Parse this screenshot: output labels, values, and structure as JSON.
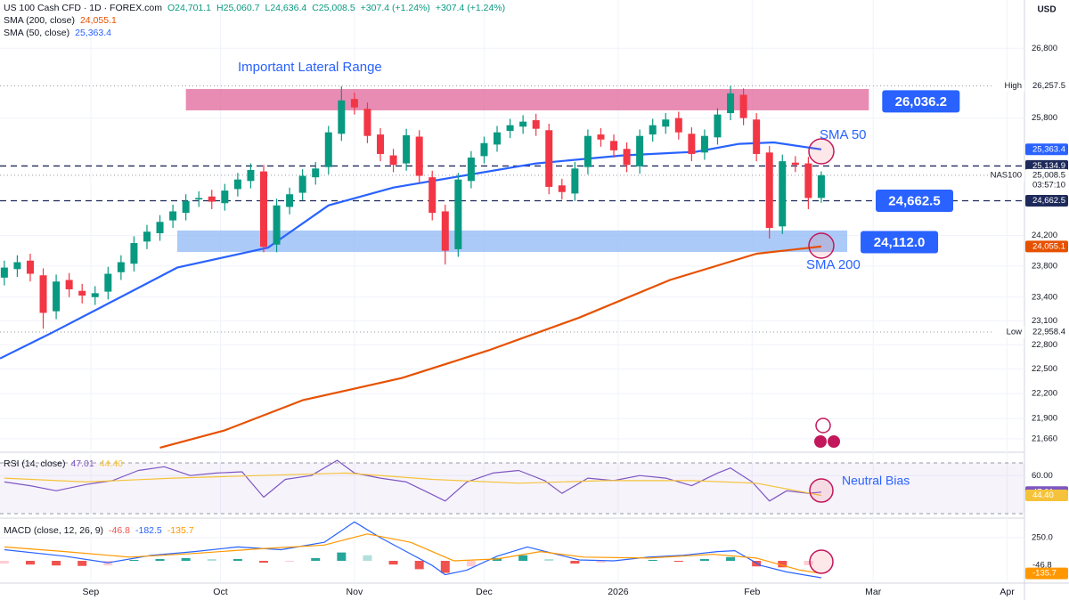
{
  "chart_data": [
    {
      "type": "candlestick",
      "title": "US 100 Cash CFD · 1D · FOREX.com",
      "quote": [
        "O24,701.1",
        "H25,060.7",
        "L24,636.4",
        "C25,008.5",
        "+307.4 (+1.24%)",
        "+307.4 (+1.24%)"
      ],
      "unit": "USD",
      "log": true,
      "grid": true,
      "xlim": [
        10,
        247
      ],
      "xticks": [
        {
          "value": 31,
          "label": "Sep"
        },
        {
          "value": 61,
          "label": "Oct"
        },
        {
          "value": 92,
          "label": "Nov"
        },
        {
          "value": 122,
          "label": "Dec"
        },
        {
          "value": 153,
          "label": "2026"
        },
        {
          "value": 184,
          "label": "Feb"
        },
        {
          "value": 212,
          "label": "Mar"
        },
        {
          "value": 243,
          "label": "Apr"
        }
      ],
      "ylim": [
        21502,
        27516
      ],
      "yticks": [
        {
          "value": 26800,
          "label": "26,800"
        },
        {
          "value": 25800,
          "label": "25,800"
        },
        {
          "value": 24200,
          "label": "24,200"
        },
        {
          "value": 23800,
          "label": "23,800"
        },
        {
          "value": 23400,
          "label": "23,400"
        },
        {
          "value": 23100,
          "label": "23,100"
        },
        {
          "value": 22800,
          "label": "22,800"
        },
        {
          "value": 22500,
          "label": "22,500"
        },
        {
          "value": 22200,
          "label": "22,200"
        },
        {
          "value": 21900,
          "label": "21,900"
        },
        {
          "value": 21660,
          "label": "21,660"
        }
      ],
      "up_color": "#089981",
      "down_color": "#f23645",
      "candles": {
        "x": [
          11,
          14,
          17,
          20,
          23,
          26,
          29,
          32,
          35,
          38,
          41,
          44,
          47,
          50,
          53,
          56,
          59,
          62,
          65,
          68,
          71,
          74,
          77,
          80,
          83,
          86,
          89,
          92,
          95,
          98,
          101,
          104,
          107,
          110,
          113,
          116,
          119,
          122,
          125,
          128,
          131,
          134,
          137,
          140,
          143,
          146,
          149,
          152,
          155,
          158,
          161,
          164,
          167,
          170,
          173,
          176,
          179,
          182,
          185,
          188,
          191,
          194,
          197,
          200
        ],
        "open": [
          23650,
          23760,
          23870,
          23680,
          23220,
          23620,
          23480,
          23400,
          23470,
          23720,
          23830,
          24120,
          24230,
          24400,
          24500,
          24680,
          24720,
          24630,
          24820,
          24930,
          25060,
          24080,
          24580,
          24770,
          24980,
          25120,
          25580,
          26070,
          25930,
          25570,
          25280,
          25170,
          25540,
          24980,
          24520,
          24020,
          24930,
          25270,
          25430,
          25620,
          25680,
          25770,
          25630,
          24870,
          24760,
          25120,
          25570,
          25480,
          25370,
          25130,
          25570,
          25680,
          25800,
          25580,
          25320,
          25530,
          25870,
          26130,
          25780,
          25320,
          24320,
          25180,
          25170,
          24701.1
        ],
        "high": [
          23870,
          23940,
          23960,
          23770,
          23690,
          23710,
          23570,
          23540,
          23790,
          23940,
          24190,
          24340,
          24470,
          24610,
          24750,
          24790,
          24810,
          24890,
          25040,
          25170,
          25150,
          24690,
          24840,
          25090,
          25190,
          25690,
          26250,
          26160,
          26020,
          25660,
          25370,
          25650,
          25630,
          25070,
          24610,
          25040,
          25340,
          25540,
          25690,
          25790,
          25840,
          25860,
          25720,
          24960,
          25190,
          25640,
          25660,
          25570,
          25460,
          25640,
          25790,
          25870,
          25890,
          25670,
          25640,
          25940,
          26257.5,
          26220,
          25870,
          25410,
          25290,
          25270,
          25260,
          25060.7
        ],
        "low": [
          23550,
          23660,
          23600,
          23000,
          23120,
          23400,
          23320,
          23300,
          23370,
          23620,
          23730,
          24020,
          24130,
          24300,
          24400,
          24580,
          24550,
          24530,
          24720,
          24830,
          23980,
          23980,
          24480,
          24670,
          24880,
          25020,
          25480,
          25850,
          25450,
          25200,
          25050,
          25070,
          24900,
          24400,
          23820,
          23920,
          24830,
          25170,
          25330,
          25520,
          25580,
          25550,
          24750,
          24680,
          24660,
          25020,
          25400,
          25250,
          25050,
          25030,
          25470,
          25580,
          25500,
          25200,
          25220,
          25430,
          25770,
          25700,
          25200,
          24160,
          24220,
          25050,
          24550,
          24636.4
        ],
        "close": [
          23780,
          23850,
          23700,
          23200,
          23600,
          23500,
          23420,
          23450,
          23700,
          23850,
          24100,
          24250,
          24380,
          24520,
          24660,
          24700,
          24650,
          24800,
          24950,
          25080,
          24050,
          24600,
          24750,
          25000,
          25100,
          25600,
          26050,
          25950,
          25550,
          25300,
          25150,
          25560,
          25000,
          24500,
          24000,
          24950,
          25250,
          25450,
          25600,
          25700,
          25750,
          25650,
          24850,
          24780,
          25100,
          25550,
          25500,
          25350,
          25150,
          25550,
          25700,
          25780,
          25600,
          25300,
          25550,
          25850,
          26150,
          25800,
          25300,
          24300,
          25200,
          25150,
          24700,
          25008.5
        ]
      },
      "series": [
        {
          "name": "SMA (200, close)",
          "last_label": "24,055.1",
          "color": "#e65100",
          "x": [
            47,
            62,
            80,
            103,
            123,
            144,
            165,
            185,
            200
          ],
          "values": [
            21555,
            21760,
            22120,
            22390,
            22730,
            23140,
            23620,
            23960,
            24055.1
          ]
        },
        {
          "name": "SMA (50, close)",
          "last_label": "25,363.4",
          "color": "#2962ff",
          "x": [
            10,
            22,
            33,
            51,
            72,
            86,
            101,
            117,
            134,
            154,
            171,
            181,
            189,
            200
          ],
          "values": [
            22630,
            22950,
            23260,
            23780,
            24040,
            24600,
            24840,
            25000,
            25170,
            25280,
            25330,
            25440,
            25460,
            25363.4
          ]
        }
      ],
      "zones": [
        {
          "value": 26036.2,
          "label": "26,036.2",
          "low": 25909,
          "high": 26212,
          "x_start": 53,
          "x_end": 211,
          "color": "#e0659a"
        },
        {
          "value": 24112.0,
          "label": "24,112.0",
          "low": 23983,
          "high": 24266,
          "x_start": 51,
          "x_end": 206,
          "color": "#8fb8f5"
        }
      ],
      "badges": [
        {
          "value": 26257.5,
          "label": "26,257.5",
          "tag": "High",
          "line": "dotted",
          "color": "#ffffff"
        },
        {
          "value": 25363.4,
          "label": "25,363.4",
          "color": "#2962ff"
        },
        {
          "value": 25134.9,
          "label": "25,134.9",
          "line": "dashed",
          "color": "#1e2a5a"
        },
        {
          "value": 25008.5,
          "label": "25,008.5",
          "tag": "NAS100",
          "sub": "03:57:10",
          "line": "dotted",
          "color": "#ffffff"
        },
        {
          "value": 24662.5,
          "label": "24,662.5",
          "line": "dashed",
          "color": "#1e2a5a",
          "callout": true
        },
        {
          "value": 24055.1,
          "label": "24,055.1",
          "color": "#e65100"
        },
        {
          "value": 22958.4,
          "label": "22,958.4",
          "tag": "Low",
          "line": "dotted",
          "color": "#ffffff"
        }
      ],
      "callout_color": "#2962ff",
      "annotations": [
        "Important Lateral Range",
        "SMA 50",
        "SMA 200"
      ]
    },
    {
      "type": "line",
      "title": "RSI (14, close)",
      "ylim": [
        26.5,
        78.4
      ],
      "yticks": [
        {
          "value": 60,
          "label": "60.00"
        }
      ],
      "band": [
        30,
        70
      ],
      "series": [
        {
          "last_label": "47.01",
          "color": "#7e57c2",
          "x": [
            11,
            17,
            23,
            30,
            36,
            42,
            48,
            54,
            60,
            66,
            71,
            76,
            82,
            88,
            92,
            98,
            104,
            110,
            113,
            118,
            124,
            130,
            136,
            140,
            146,
            152,
            158,
            164,
            170,
            176,
            179,
            184,
            188,
            192,
            197,
            200
          ],
          "values": [
            55,
            52,
            48,
            53,
            56,
            64,
            67,
            60,
            62,
            63,
            43,
            57,
            60,
            72,
            62,
            58,
            55,
            45,
            40,
            55,
            62,
            64,
            56,
            46,
            58,
            56,
            60,
            58,
            52,
            62,
            66,
            55,
            40,
            48,
            46,
            47.01
          ]
        },
        {
          "last_label": "44.40",
          "color": "#f5c33b",
          "x": [
            11,
            30,
            50,
            70,
            90,
            110,
            130,
            150,
            170,
            185,
            200
          ],
          "values": [
            58,
            55,
            58,
            60,
            62,
            57,
            54,
            56,
            56,
            54,
            44.4
          ]
        }
      ],
      "badges": [
        {
          "value": 47.01,
          "label": "47.01",
          "color": "#7e57c2"
        },
        {
          "value": 44.4,
          "label": "44.40",
          "color": "#f5c33b"
        }
      ],
      "annotations": [
        "Neutral Bias"
      ]
    },
    {
      "type": "macd",
      "title": "MACD (close, 12, 26, 9)",
      "ylim": [
        -240,
        461
      ],
      "yticks": [
        {
          "value": 250,
          "label": "250.0"
        }
      ],
      "histogram": {
        "last_label": "-46.8",
        "up_color": "#26a69a",
        "down_color": "#ef5350",
        "x": [
          11,
          17,
          23,
          29,
          35,
          41,
          47,
          53,
          59,
          65,
          71,
          77,
          83,
          89,
          95,
          101,
          107,
          113,
          119,
          125,
          131,
          137,
          143,
          149,
          155,
          161,
          167,
          173,
          179,
          185,
          191,
          197
        ],
        "values": [
          -30,
          -40,
          -50,
          -55,
          -50,
          10,
          20,
          30,
          20,
          20,
          -20,
          -10,
          30,
          90,
          60,
          -40,
          -90,
          -130,
          -60,
          30,
          60,
          20,
          -30,
          -20,
          0,
          10,
          -10,
          20,
          40,
          -60,
          -70,
          -46.8
        ]
      },
      "series": [
        {
          "last_label": "-182.5",
          "color": "#2962ff",
          "x": [
            11,
            25,
            35,
            45,
            55,
            65,
            75,
            85,
            92,
            98,
            104,
            110,
            113,
            118,
            125,
            132,
            138,
            144,
            152,
            160,
            168,
            176,
            180,
            186,
            192,
            200
          ],
          "values": [
            120,
            50,
            -20,
            60,
            100,
            150,
            120,
            200,
            420,
            250,
            100,
            -50,
            -150,
            -100,
            50,
            150,
            80,
            10,
            0,
            40,
            60,
            100,
            110,
            -50,
            -120,
            -182.5
          ]
        },
        {
          "last_label": "-135.7",
          "color": "#ff9800",
          "x": [
            11,
            25,
            40,
            55,
            70,
            85,
            95,
            105,
            115,
            125,
            135,
            145,
            160,
            175,
            185,
            195,
            200
          ],
          "values": [
            150,
            100,
            40,
            80,
            130,
            170,
            290,
            200,
            0,
            20,
            100,
            40,
            30,
            70,
            30,
            -100,
            -135.7
          ]
        }
      ],
      "badges": [
        {
          "value": -46.8,
          "label": "-46.8",
          "color": "#ffffff"
        },
        {
          "value": -135.7,
          "label": "-135.7",
          "color": "#ff9800"
        }
      ]
    }
  ]
}
